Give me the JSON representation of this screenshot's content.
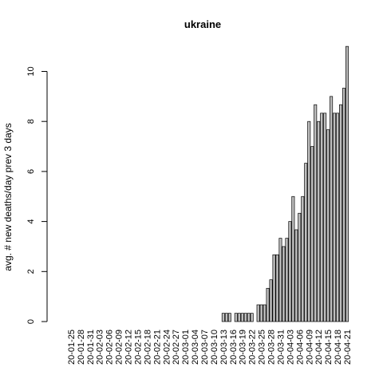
{
  "chart_data": {
    "type": "bar",
    "title": "ukraine",
    "xlabel": "",
    "ylabel": "avg. # new deaths/day prev  3  days",
    "ylim": [
      0,
      11
    ],
    "yticks": [
      0,
      2,
      4,
      6,
      8,
      10
    ],
    "grid": false,
    "bar_color": "#bebebe",
    "start_date": "2020-01-22",
    "tick_labels": [
      "20-01-25",
      "20-01-28",
      "20-01-31",
      "20-02-03",
      "20-02-06",
      "20-02-09",
      "20-02-12",
      "20-02-15",
      "20-02-18",
      "20-02-21",
      "20-02-24",
      "20-02-27",
      "20-03-01",
      "20-03-04",
      "20-03-07",
      "20-03-10",
      "20-03-13",
      "20-03-16",
      "20-03-19",
      "20-03-22",
      "20-03-25",
      "20-03-28",
      "20-03-31",
      "20-04-03",
      "20-04-06",
      "20-04-09",
      "20-04-12",
      "20-04-15",
      "20-04-18",
      "20-04-21"
    ],
    "values": [
      0,
      0,
      0,
      0,
      0,
      0,
      0,
      0,
      0,
      0,
      0,
      0,
      0,
      0,
      0,
      0,
      0,
      0,
      0,
      0,
      0,
      0,
      0,
      0,
      0,
      0,
      0,
      0,
      0,
      0,
      0,
      0,
      0,
      0,
      0,
      0,
      0,
      0,
      0,
      0,
      0,
      0,
      0,
      0,
      0,
      0,
      0,
      0,
      0,
      0,
      0,
      0.33,
      0.33,
      0.33,
      0,
      0.33,
      0.33,
      0.33,
      0.33,
      0.33,
      0.33,
      0,
      0.67,
      0.67,
      0.67,
      1.33,
      1.67,
      2.67,
      2.67,
      3.33,
      3,
      3.33,
      4,
      5,
      3.67,
      4.33,
      5,
      6.33,
      8,
      7,
      8.67,
      8,
      8.33,
      8.33,
      7.67,
      9,
      8.33,
      8.33,
      8.67,
      9.33,
      11
    ]
  }
}
